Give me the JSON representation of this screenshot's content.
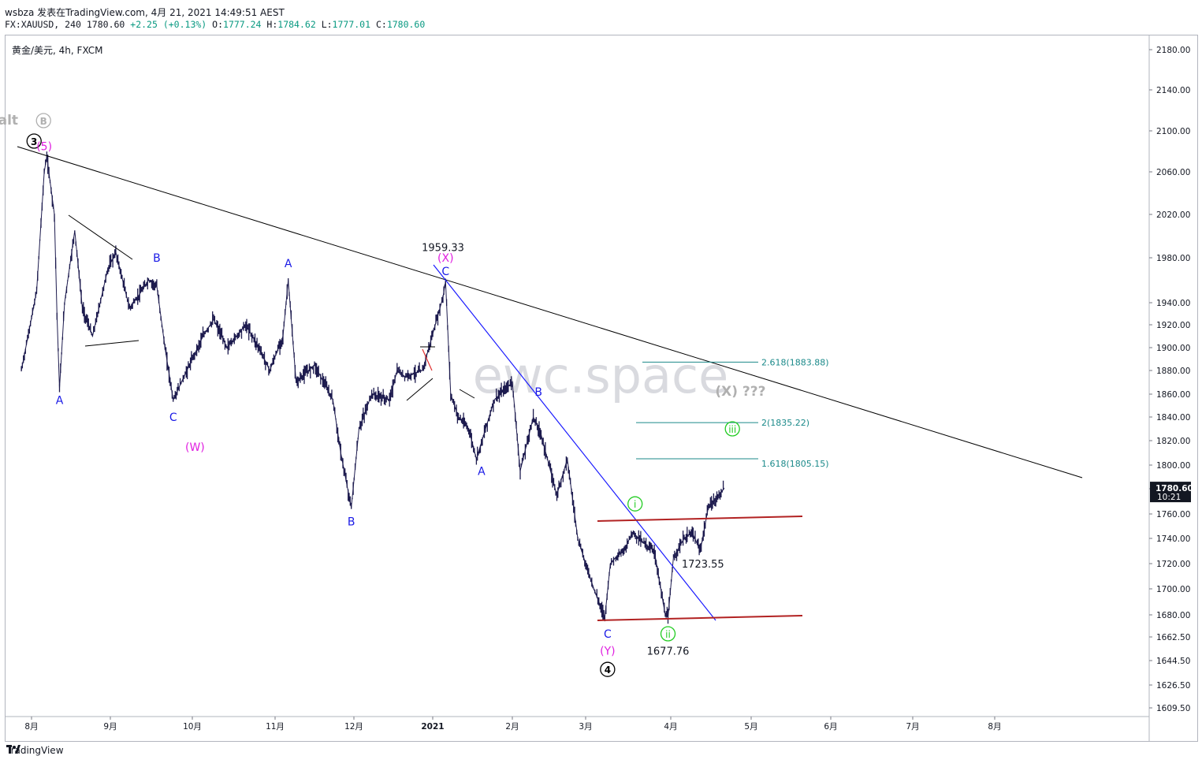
{
  "header": {
    "line1": "wsbza 发表在TradingView.com, 4月 21, 2021 14:49:51 AEST",
    "ticker": "FX:XAUUSD, 240",
    "price": "1780.60",
    "change": "+2.25 (+0.13%)",
    "o_label": "O:",
    "o": "1777.24",
    "h_label": "H:",
    "h": "1784.62",
    "l_label": "L:",
    "l": "1777.01",
    "c_label": "C:",
    "c": "1780.60"
  },
  "symbol_label": "黄金/美元, 4h, FXCM",
  "watermark": "ewc.space",
  "footer": {
    "brand": "TradingView"
  },
  "colors": {
    "candles": "#1d1b4e",
    "trendline_black": "#000000",
    "trendline_blue": "#1a1aff",
    "channel_red": "#b22222",
    "fib": "#1b8a8a",
    "wave_magenta": "#e020e0",
    "wave_blue": "#1a1ae6",
    "wave_green": "#22cc22",
    "wave_grey": "#b0b0b0",
    "price_tag_bg": "#131722"
  },
  "chart_data": {
    "type": "line",
    "symbol": "XAUUSD",
    "timeframe": "4h",
    "y_ticks": [
      "2180.00",
      "2140.00",
      "2100.00",
      "2060.00",
      "2020.00",
      "1980.00",
      "1940.00",
      "1920.00",
      "1900.00",
      "1880.00",
      "1860.00",
      "1840.00",
      "1820.00",
      "1800.00",
      "1780.00",
      "1760.00",
      "1740.00",
      "1720.00",
      "1700.00",
      "1680.00",
      "1662.50",
      "1644.50",
      "1626.50",
      "1609.50"
    ],
    "x_ticks": [
      "8月",
      "9月",
      "10月",
      "11月",
      "12月",
      "2021",
      "2月",
      "3月",
      "4月",
      "5月",
      "6月",
      "7月",
      "8月"
    ],
    "current_price_tag": "1780.60",
    "countdown_tag": "10:21",
    "price_series": [
      {
        "d": "2020-07-28",
        "v": 1880
      },
      {
        "d": "2020-08-03",
        "v": 1950
      },
      {
        "d": "2020-08-06",
        "v": 2060
      },
      {
        "d": "2020-08-07",
        "v": 2075
      },
      {
        "d": "2020-08-10",
        "v": 2020
      },
      {
        "d": "2020-08-11",
        "v": 1930
      },
      {
        "d": "2020-08-12",
        "v": 1865
      },
      {
        "d": "2020-08-14",
        "v": 1940
      },
      {
        "d": "2020-08-18",
        "v": 2005
      },
      {
        "d": "2020-08-21",
        "v": 1935
      },
      {
        "d": "2020-08-25",
        "v": 1910
      },
      {
        "d": "2020-08-31",
        "v": 1970
      },
      {
        "d": "2020-09-03",
        "v": 1985
      },
      {
        "d": "2020-09-08",
        "v": 1935
      },
      {
        "d": "2020-09-11",
        "v": 1945
      },
      {
        "d": "2020-09-15",
        "v": 1960
      },
      {
        "d": "2020-09-18",
        "v": 1955
      },
      {
        "d": "2020-09-21",
        "v": 1900
      },
      {
        "d": "2020-09-24",
        "v": 1855
      },
      {
        "d": "2020-09-28",
        "v": 1875
      },
      {
        "d": "2020-10-05",
        "v": 1910
      },
      {
        "d": "2020-10-09",
        "v": 1925
      },
      {
        "d": "2020-10-14",
        "v": 1900
      },
      {
        "d": "2020-10-21",
        "v": 1920
      },
      {
        "d": "2020-10-26",
        "v": 1900
      },
      {
        "d": "2020-10-30",
        "v": 1880
      },
      {
        "d": "2020-11-04",
        "v": 1910
      },
      {
        "d": "2020-11-06",
        "v": 1960
      },
      {
        "d": "2020-11-09",
        "v": 1870
      },
      {
        "d": "2020-11-16",
        "v": 1885
      },
      {
        "d": "2020-11-23",
        "v": 1855
      },
      {
        "d": "2020-11-26",
        "v": 1810
      },
      {
        "d": "2020-11-30",
        "v": 1765
      },
      {
        "d": "2020-12-03",
        "v": 1830
      },
      {
        "d": "2020-12-08",
        "v": 1860
      },
      {
        "d": "2020-12-15",
        "v": 1855
      },
      {
        "d": "2020-12-18",
        "v": 1880
      },
      {
        "d": "2020-12-21",
        "v": 1875
      },
      {
        "d": "2020-12-28",
        "v": 1880
      },
      {
        "d": "2021-01-05",
        "v": 1945
      },
      {
        "d": "2021-01-06",
        "v": 1959
      },
      {
        "d": "2021-01-08",
        "v": 1860
      },
      {
        "d": "2021-01-11",
        "v": 1840
      },
      {
        "d": "2021-01-15",
        "v": 1830
      },
      {
        "d": "2021-01-18",
        "v": 1805
      },
      {
        "d": "2021-01-25",
        "v": 1855
      },
      {
        "d": "2021-02-01",
        "v": 1870
      },
      {
        "d": "2021-02-04",
        "v": 1795
      },
      {
        "d": "2021-02-09",
        "v": 1840
      },
      {
        "d": "2021-02-12",
        "v": 1825
      },
      {
        "d": "2021-02-18",
        "v": 1775
      },
      {
        "d": "2021-02-22",
        "v": 1805
      },
      {
        "d": "2021-02-26",
        "v": 1740
      },
      {
        "d": "2021-03-01",
        "v": 1720
      },
      {
        "d": "2021-03-04",
        "v": 1700
      },
      {
        "d": "2021-03-08",
        "v": 1678
      },
      {
        "d": "2021-03-10",
        "v": 1720
      },
      {
        "d": "2021-03-12",
        "v": 1725
      },
      {
        "d": "2021-03-15",
        "v": 1730
      },
      {
        "d": "2021-03-18",
        "v": 1745
      },
      {
        "d": "2021-03-23",
        "v": 1735
      },
      {
        "d": "2021-03-26",
        "v": 1730
      },
      {
        "d": "2021-03-30",
        "v": 1680
      },
      {
        "d": "2021-03-31",
        "v": 1678
      },
      {
        "d": "2021-04-02",
        "v": 1725
      },
      {
        "d": "2021-04-06",
        "v": 1740
      },
      {
        "d": "2021-04-09",
        "v": 1745
      },
      {
        "d": "2021-04-12",
        "v": 1730
      },
      {
        "d": "2021-04-15",
        "v": 1765
      },
      {
        "d": "2021-04-19",
        "v": 1775
      },
      {
        "d": "2021-04-21",
        "v": 1780.6
      }
    ],
    "annotations": [
      {
        "text": "alt",
        "d": "2020-07-29",
        "v": 2110,
        "color": "grey",
        "circle": false
      },
      {
        "text": "B",
        "d": "2020-08-02",
        "v": 2110,
        "color": "grey",
        "circle": true
      },
      {
        "text": "3",
        "d": "2020-08-02",
        "v": 2090,
        "color": "black",
        "circle": true
      },
      {
        "text": "(5)",
        "d": "2020-08-06",
        "v": 2085,
        "color": "magenta",
        "circle": false
      },
      {
        "text": "A",
        "d": "2020-08-12",
        "v": 1855,
        "color": "blue",
        "circle": false
      },
      {
        "text": "B",
        "d": "2020-09-18",
        "v": 1980,
        "color": "blue",
        "circle": false
      },
      {
        "text": "C",
        "d": "2020-09-24",
        "v": 1840,
        "color": "blue",
        "circle": false
      },
      {
        "text": "(W)",
        "d": "2020-10-02",
        "v": 1815,
        "color": "magenta",
        "circle": false
      },
      {
        "text": "A",
        "d": "2020-11-06",
        "v": 1975,
        "color": "blue",
        "circle": false
      },
      {
        "text": "B",
        "d": "2020-11-30",
        "v": 1754,
        "color": "blue",
        "circle": false
      },
      {
        "text": "1959.33",
        "d": "2021-01-05",
        "v": 1990,
        "color": "dark",
        "circle": false
      },
      {
        "text": "(X)",
        "d": "2021-01-06",
        "v": 1980,
        "color": "magenta",
        "circle": false
      },
      {
        "text": "C",
        "d": "2021-01-06",
        "v": 1968,
        "color": "blue",
        "circle": false
      },
      {
        "text": "A",
        "d": "2021-01-20",
        "v": 1795,
        "color": "blue",
        "circle": false
      },
      {
        "text": "B",
        "d": "2021-02-11",
        "v": 1862,
        "color": "blue",
        "circle": false
      },
      {
        "text": "C",
        "d": "2021-03-09",
        "v": 1665,
        "color": "blue",
        "circle": false
      },
      {
        "text": "(Y)",
        "d": "2021-03-09",
        "v": 1652,
        "color": "magenta",
        "circle": false
      },
      {
        "text": "4",
        "d": "2021-03-09",
        "v": 1638,
        "color": "black",
        "circle": true
      },
      {
        "text": "i",
        "d": "2021-03-19",
        "v": 1768,
        "color": "green",
        "circle": true
      },
      {
        "text": "ii",
        "d": "2021-03-31",
        "v": 1665,
        "color": "green",
        "circle": true
      },
      {
        "text": "1677.76",
        "d": "2021-03-31",
        "v": 1652,
        "color": "dark",
        "circle": false
      },
      {
        "text": "1723.55",
        "d": "2021-04-13",
        "v": 1720,
        "color": "dark",
        "circle": false
      },
      {
        "text": "iii",
        "d": "2021-04-24",
        "v": 1830,
        "color": "green",
        "circle": true
      },
      {
        "text": "(X) ???",
        "d": "2021-04-27",
        "v": 1862,
        "color": "grey",
        "circle": false
      }
    ],
    "fib_levels": [
      {
        "label": "2.618(1883.88)",
        "v": 1883.88
      },
      {
        "label": "2(1835.22)",
        "v": 1835.22
      },
      {
        "label": "1.618(1805.15)",
        "v": 1805.15
      }
    ]
  }
}
